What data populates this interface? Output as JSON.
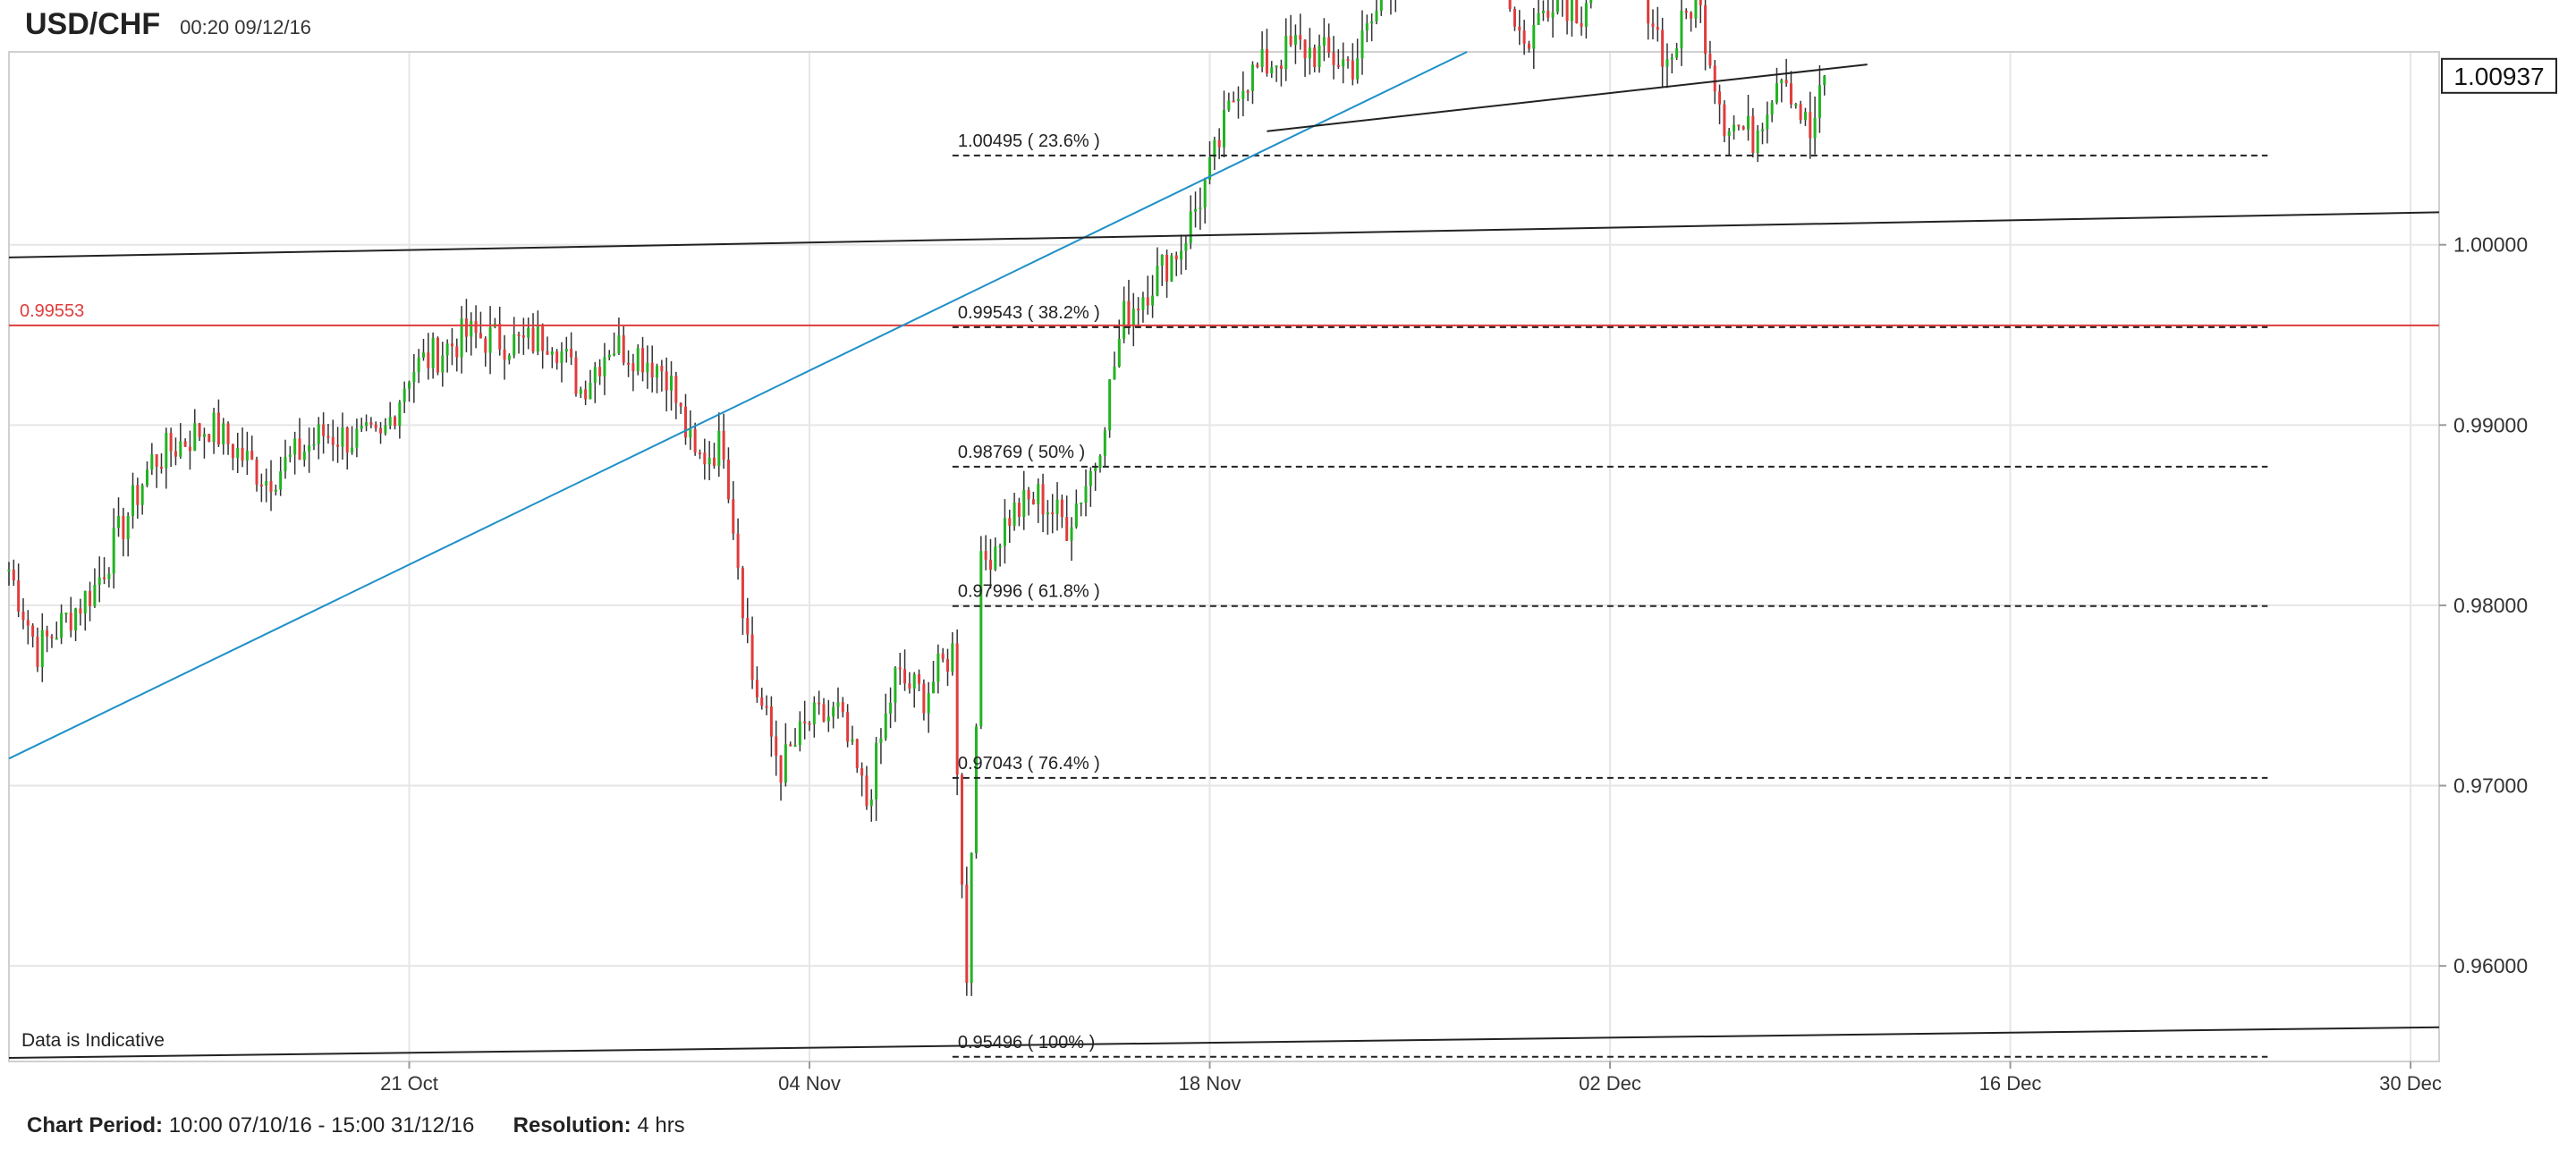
{
  "header": {
    "symbol": "USD/CHF",
    "timestamp": "00:20 09/12/16"
  },
  "footer": {
    "period_label": "Chart Period:",
    "period_value": "10:00 07/10/16 - 15:00 31/12/16",
    "resolution_label": "Resolution:",
    "resolution_value": "4 hrs"
  },
  "chart_data": {
    "type": "candlestick",
    "title": "USD/CHF",
    "xlabel": "",
    "ylabel": "",
    "x_range": [
      "2016-10-07",
      "2016-12-31"
    ],
    "ylim": [
      0.9547,
      1.0107
    ],
    "x_ticks": [
      {
        "date": "2016-10-21",
        "label": "21 Oct"
      },
      {
        "date": "2016-11-04",
        "label": "04 Nov"
      },
      {
        "date": "2016-11-18",
        "label": "18 Nov"
      },
      {
        "date": "2016-12-02",
        "label": "02 Dec"
      },
      {
        "date": "2016-12-16",
        "label": "16 Dec"
      },
      {
        "date": "2016-12-30",
        "label": "30 Dec"
      }
    ],
    "y_ticks": [
      {
        "value": 0.96,
        "label": "0.96000"
      },
      {
        "value": 0.97,
        "label": "0.97000"
      },
      {
        "value": 0.98,
        "label": "0.98000"
      },
      {
        "value": 0.99,
        "label": "0.99000"
      },
      {
        "value": 1.0,
        "label": "1.00000"
      }
    ],
    "grid": true,
    "current_price": {
      "value": 1.00937,
      "label": "1.00937"
    },
    "horizontal_line": {
      "value": 0.99553,
      "label": "0.99553",
      "color": "#e03c3c"
    },
    "fibonacci_levels": [
      {
        "value": 1.00495,
        "label": "1.00495 ( 23.6% )"
      },
      {
        "value": 0.99543,
        "label": "0.99543 ( 38.2% )"
      },
      {
        "value": 0.98769,
        "label": "0.98769 ( 50% )"
      },
      {
        "value": 0.97996,
        "label": "0.97996 ( 61.8% )"
      },
      {
        "value": 0.97043,
        "label": "0.97043 ( 76.4% )"
      },
      {
        "value": 0.95496,
        "label": "0.95496 ( 100% )"
      }
    ],
    "fibonacci_start": "2016-11-09",
    "fibonacci_end": "2016-12-25",
    "trendlines": [
      {
        "color": "#1e90c8",
        "points": [
          [
            "2016-10-07",
            0.9715
          ],
          [
            "2016-11-27",
            1.0107
          ]
        ]
      },
      {
        "color": "#222222",
        "points": [
          [
            "2016-10-07",
            0.9993
          ],
          [
            "2016-12-31",
            1.0018
          ]
        ]
      },
      {
        "color": "#222222",
        "points": [
          [
            "2016-10-07",
            0.9549
          ],
          [
            "2016-12-31",
            0.9566
          ]
        ]
      },
      {
        "color": "#222222",
        "points": [
          [
            "2016-11-20",
            1.0063
          ],
          [
            "2016-12-11",
            1.01
          ]
        ]
      }
    ],
    "annotation": "Data is Indicative",
    "up_color": "#22b322",
    "down_color": "#e03c3c",
    "waypoints": [
      [
        "2016-10-07",
        0.982
      ],
      [
        "2016-10-08",
        0.9775
      ],
      [
        "2016-10-10",
        0.981
      ],
      [
        "2016-10-12",
        0.988
      ],
      [
        "2016-10-14",
        0.99
      ],
      [
        "2016-10-16",
        0.987
      ],
      [
        "2016-10-18",
        0.9895
      ],
      [
        "2016-10-20",
        0.989
      ],
      [
        "2016-10-21",
        0.993
      ],
      [
        "2016-10-23",
        0.995
      ],
      [
        "2016-10-25",
        0.9945
      ],
      [
        "2016-10-26",
        0.995
      ],
      [
        "2016-10-27",
        0.992
      ],
      [
        "2016-10-28",
        0.9945
      ],
      [
        "2016-10-29",
        0.994
      ],
      [
        "2016-10-30",
        0.993
      ],
      [
        "2016-10-31",
        0.988
      ],
      [
        "2016-11-01",
        0.989
      ],
      [
        "2016-11-02",
        0.976
      ],
      [
        "2016-11-03",
        0.971
      ],
      [
        "2016-11-04",
        0.9735
      ],
      [
        "2016-11-05",
        0.974
      ],
      [
        "2016-11-06",
        0.969
      ],
      [
        "2016-11-07",
        0.976
      ],
      [
        "2016-11-08",
        0.975
      ],
      [
        "2016-11-09",
        0.9775
      ],
      [
        "2016-11-09T12",
        0.959
      ],
      [
        "2016-11-10",
        0.982
      ],
      [
        "2016-11-11",
        0.985
      ],
      [
        "2016-11-12",
        0.986
      ],
      [
        "2016-11-13",
        0.9845
      ],
      [
        "2016-11-14",
        0.988
      ],
      [
        "2016-11-15",
        0.996
      ],
      [
        "2016-11-16",
        0.998
      ],
      [
        "2016-11-17",
        1.0
      ],
      [
        "2016-11-18",
        1.004
      ],
      [
        "2016-11-19",
        1.009
      ],
      [
        "2016-11-21",
        1.011
      ],
      [
        "2016-11-23",
        1.01
      ],
      [
        "2016-11-25",
        1.017
      ],
      [
        "2016-11-27",
        1.018
      ],
      [
        "2016-11-28",
        1.016
      ],
      [
        "2016-11-29",
        1.011
      ],
      [
        "2016-11-30",
        1.014
      ],
      [
        "2016-12-01",
        1.013
      ],
      [
        "2016-12-02",
        1.018
      ],
      [
        "2016-12-03",
        1.015
      ],
      [
        "2016-12-04",
        1.01
      ],
      [
        "2016-12-05",
        1.014
      ],
      [
        "2016-12-06",
        1.007
      ],
      [
        "2016-12-07",
        1.006
      ],
      [
        "2016-12-08",
        1.01
      ],
      [
        "2016-12-09",
        1.006
      ],
      [
        "2016-12-09T12",
        1.009
      ]
    ]
  }
}
